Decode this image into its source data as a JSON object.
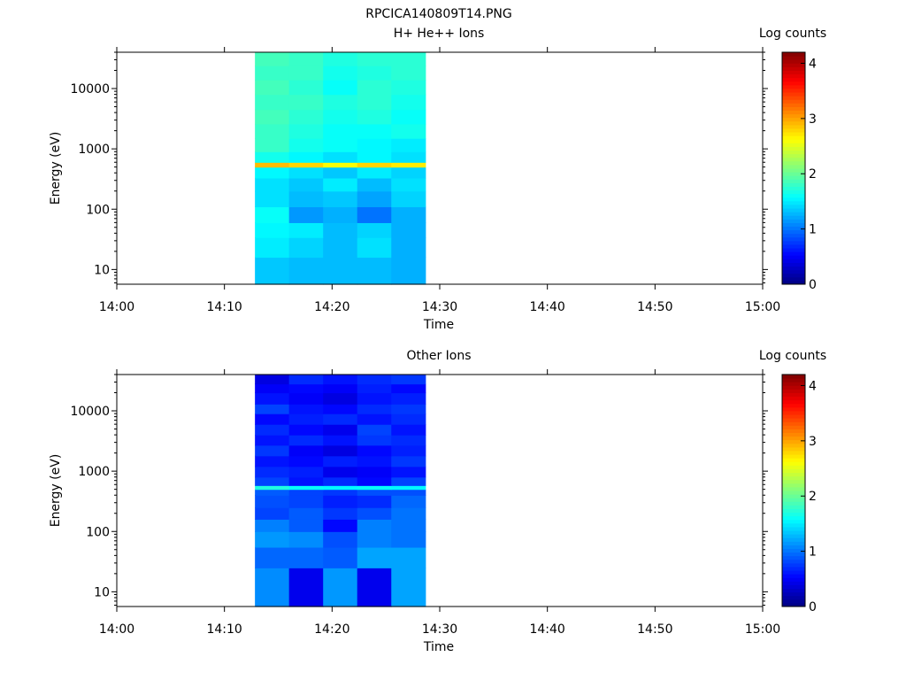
{
  "figure_title": "RPCICA140809T14.PNG",
  "chart_data": [
    {
      "type": "heatmap",
      "title": "H+ He++ Ions",
      "xlabel": "Time",
      "ylabel": "Energy (eV)",
      "colorbar_label": "Log counts",
      "y_scale": "log",
      "x_range": [
        "14:00",
        "15:00"
      ],
      "y_range": [
        5.7,
        40000
      ],
      "color_range": [
        0,
        4.2
      ],
      "x_ticks": [
        "14:00",
        "14:10",
        "14:20",
        "14:30",
        "14:40",
        "14:50",
        "15:00"
      ],
      "y_ticks": [
        "10",
        "100",
        "1000",
        "10000"
      ],
      "colorbar_ticks": [
        "0",
        "1",
        "2",
        "3",
        "4"
      ],
      "grid": false,
      "columns": [
        "14:12:50",
        "14:16:00",
        "14:19:10",
        "14:22:20",
        "14:25:30"
      ],
      "columns_end": "14:28:40",
      "rows": [
        {
          "range": [
            5.7,
            16
          ],
          "values": [
            1.35,
            1.3,
            1.3,
            1.3,
            1.25
          ]
        },
        {
          "range": [
            16,
            34
          ],
          "values": [
            1.5,
            1.4,
            1.3,
            1.45,
            1.25
          ]
        },
        {
          "range": [
            34,
            60
          ],
          "values": [
            1.55,
            1.5,
            1.3,
            1.4,
            1.25
          ]
        },
        {
          "range": [
            60,
            110
          ],
          "values": [
            1.6,
            1.15,
            1.25,
            1.0,
            1.25
          ]
        },
        {
          "range": [
            110,
            200
          ],
          "values": [
            1.45,
            1.3,
            1.35,
            1.2,
            1.4
          ]
        },
        {
          "range": [
            200,
            330
          ],
          "values": [
            1.45,
            1.35,
            1.5,
            1.3,
            1.45
          ]
        },
        {
          "range": [
            330,
            500
          ],
          "values": [
            1.55,
            1.45,
            1.35,
            1.5,
            1.4
          ]
        },
        {
          "range": [
            500,
            600
          ],
          "values": [
            2.9,
            2.8,
            2.6,
            2.8,
            2.7
          ]
        },
        {
          "range": [
            600,
            900
          ],
          "values": [
            1.65,
            1.55,
            1.45,
            1.55,
            1.45
          ]
        },
        {
          "range": [
            900,
            1500
          ],
          "values": [
            1.8,
            1.65,
            1.6,
            1.55,
            1.5
          ]
        },
        {
          "range": [
            1500,
            2600
          ],
          "values": [
            1.8,
            1.7,
            1.6,
            1.6,
            1.65
          ]
        },
        {
          "range": [
            2600,
            4500
          ],
          "values": [
            1.85,
            1.75,
            1.65,
            1.7,
            1.6
          ]
        },
        {
          "range": [
            4500,
            8000
          ],
          "values": [
            1.8,
            1.8,
            1.7,
            1.75,
            1.65
          ]
        },
        {
          "range": [
            8000,
            14000
          ],
          "values": [
            1.85,
            1.75,
            1.6,
            1.75,
            1.7
          ]
        },
        {
          "range": [
            14000,
            24000
          ],
          "values": [
            1.8,
            1.8,
            1.65,
            1.7,
            1.75
          ]
        },
        {
          "range": [
            24000,
            40000
          ],
          "values": [
            1.85,
            1.8,
            1.7,
            1.75,
            1.75
          ]
        }
      ]
    },
    {
      "type": "heatmap",
      "title": "Other Ions",
      "xlabel": "Time",
      "ylabel": "Energy (eV)",
      "colorbar_label": "Log counts",
      "y_scale": "log",
      "x_range": [
        "14:00",
        "15:00"
      ],
      "y_range": [
        5.7,
        40000
      ],
      "color_range": [
        0,
        4.2
      ],
      "x_ticks": [
        "14:00",
        "14:10",
        "14:20",
        "14:30",
        "14:40",
        "14:50",
        "15:00"
      ],
      "y_ticks": [
        "10",
        "100",
        "1000",
        "10000"
      ],
      "colorbar_ticks": [
        "0",
        "1",
        "2",
        "3",
        "4"
      ],
      "grid": false,
      "columns": [
        "14:12:50",
        "14:16:00",
        "14:19:10",
        "14:22:20",
        "14:25:30"
      ],
      "columns_end": "14:28:40",
      "rows": [
        {
          "range": [
            5.7,
            25
          ],
          "values": [
            1.1,
            0.45,
            1.15,
            0.45,
            1.2
          ]
        },
        {
          "range": [
            25,
            55
          ],
          "values": [
            0.95,
            0.95,
            0.9,
            1.2,
            1.2
          ]
        },
        {
          "range": [
            55,
            100
          ],
          "values": [
            1.15,
            1.1,
            0.85,
            1.05,
            1.0
          ]
        },
        {
          "range": [
            100,
            160
          ],
          "values": [
            1.05,
            0.9,
            0.55,
            1.05,
            1.0
          ]
        },
        {
          "range": [
            160,
            250
          ],
          "values": [
            0.8,
            0.9,
            0.75,
            0.85,
            1.0
          ]
        },
        {
          "range": [
            250,
            400
          ],
          "values": [
            0.85,
            0.8,
            0.65,
            0.7,
            0.95
          ]
        },
        {
          "range": [
            400,
            500
          ],
          "values": [
            0.9,
            0.8,
            0.75,
            0.85,
            0.85
          ]
        },
        {
          "range": [
            500,
            580
          ],
          "values": [
            1.7,
            1.6,
            1.55,
            1.6,
            1.55
          ]
        },
        {
          "range": [
            580,
            800
          ],
          "values": [
            0.8,
            0.6,
            0.7,
            0.55,
            0.8
          ]
        },
        {
          "range": [
            800,
            1200
          ],
          "values": [
            0.7,
            0.65,
            0.45,
            0.5,
            0.6
          ]
        },
        {
          "range": [
            1200,
            1800
          ],
          "values": [
            0.6,
            0.55,
            0.65,
            0.6,
            0.75
          ]
        },
        {
          "range": [
            1800,
            2700
          ],
          "values": [
            0.75,
            0.5,
            0.4,
            0.55,
            0.65
          ]
        },
        {
          "range": [
            2700,
            4000
          ],
          "values": [
            0.6,
            0.7,
            0.6,
            0.75,
            0.7
          ]
        },
        {
          "range": [
            4000,
            6000
          ],
          "values": [
            0.7,
            0.55,
            0.45,
            0.8,
            0.6
          ]
        },
        {
          "range": [
            6000,
            9000
          ],
          "values": [
            0.55,
            0.65,
            0.7,
            0.6,
            0.7
          ]
        },
        {
          "range": [
            9000,
            13000
          ],
          "values": [
            0.8,
            0.6,
            0.55,
            0.7,
            0.75
          ]
        },
        {
          "range": [
            13000,
            20000
          ],
          "values": [
            0.6,
            0.5,
            0.4,
            0.6,
            0.65
          ]
        },
        {
          "range": [
            20000,
            28000
          ],
          "values": [
            0.5,
            0.55,
            0.5,
            0.65,
            0.55
          ]
        },
        {
          "range": [
            28000,
            40000
          ],
          "values": [
            0.4,
            0.7,
            0.6,
            0.7,
            0.75
          ]
        }
      ]
    }
  ]
}
